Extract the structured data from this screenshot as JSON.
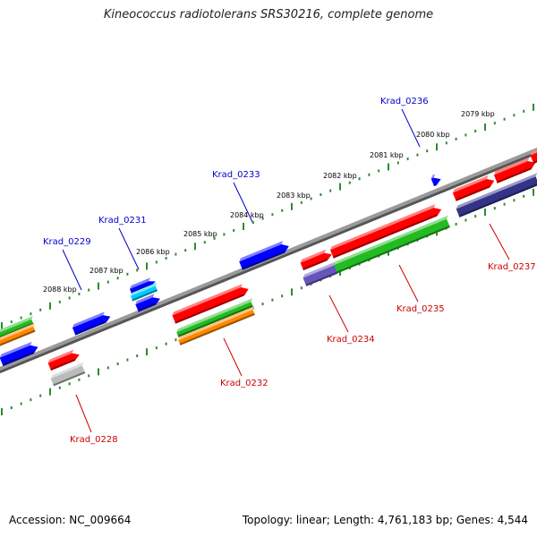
{
  "title": "Kineococcus radiotolerans SRS30216, complete genome",
  "footer": {
    "accession": "Accession: NC_009664",
    "summary": "Topology: linear; Length: 4,761,183 bp; Genes: 4,544"
  },
  "colors": {
    "backbone": "#808080",
    "ruler": "#2e8b2e",
    "plus_label": "#0000cc",
    "minus_label": "#cc0000",
    "red": "#ff0000",
    "blue": "#0000ff",
    "green": "#22bb22",
    "orange": "#ff8800",
    "gray": "#bbbbbb",
    "slate": "#6655bb",
    "navy": "#333388",
    "cyan": "#00ccff"
  },
  "kbp_labels": [
    "2088 kbp",
    "2087 kbp",
    "2086 kbp",
    "2085 kbp",
    "2084 kbp",
    "2083 kbp",
    "2082 kbp",
    "2081 kbp",
    "2080 kbp",
    "2079 kbp"
  ],
  "gene_labels": [
    {
      "text": "Krad_0229",
      "strand": "plus"
    },
    {
      "text": "Krad_0231",
      "strand": "plus"
    },
    {
      "text": "Krad_0233",
      "strand": "plus"
    },
    {
      "text": "Krad_0236",
      "strand": "plus"
    },
    {
      "text": "Krad_0228",
      "strand": "minus"
    },
    {
      "text": "Krad_0232",
      "strand": "minus"
    },
    {
      "text": "Krad_0234",
      "strand": "minus"
    },
    {
      "text": "Krad_0235",
      "strand": "minus"
    },
    {
      "text": "Krad_0237",
      "strand": "minus"
    }
  ]
}
